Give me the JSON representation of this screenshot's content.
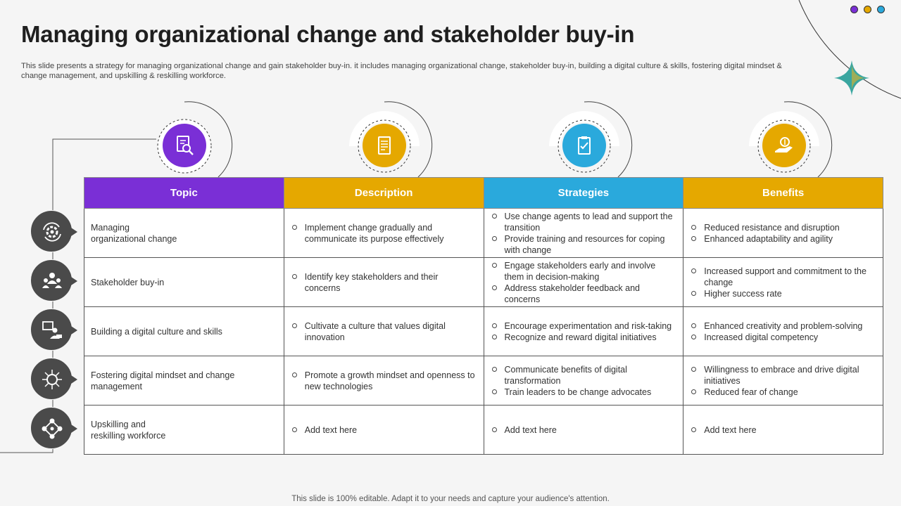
{
  "slide": {
    "title": "Managing organizational change and stakeholder buy-in",
    "subtitle": "This slide presents a strategy for managing organizational change and gain stakeholder buy-in. it includes managing organizational change, stakeholder buy-in, building a digital culture & skills, fostering digital mindset & change management, and upskilling & reskilling workforce.",
    "footer": "This slide is 100% editable. Adapt it to your needs and capture your audience's attention."
  },
  "colors": {
    "purple": "#7a2fd6",
    "yellow": "#e5a800",
    "blue": "#2aa9dc",
    "dark_gray": "#4a4a4a"
  },
  "header_icons": [
    "document-search-icon",
    "document-icon",
    "clipboard-icon",
    "money-hand-icon"
  ],
  "row_icons": [
    "gear-arrows-icon",
    "team-icon",
    "digital-learning-icon",
    "brain-circuit-icon",
    "network-icon"
  ],
  "table": {
    "headers": [
      "Topic",
      "Description",
      "Strategies",
      "Benefits"
    ],
    "rows": [
      {
        "topic": "Managing\norganizational change",
        "description": [
          "Implement change gradually and communicate its purpose effectively"
        ],
        "strategies": [
          "Use change agents to lead and support the transition",
          "Provide training and resources for coping with change"
        ],
        "benefits": [
          "Reduced resistance and disruption",
          "Enhanced adaptability and agility"
        ]
      },
      {
        "topic": "Stakeholder buy-in",
        "description": [
          "Identify key stakeholders and their concerns"
        ],
        "strategies": [
          "Engage stakeholders early and involve them in decision-making",
          "Address stakeholder feedback and concerns"
        ],
        "benefits": [
          "Increased support and commitment to the change",
          "Higher success rate"
        ]
      },
      {
        "topic": "Building a digital culture and skills",
        "description": [
          "Cultivate a culture that values digital innovation"
        ],
        "strategies": [
          "Encourage experimentation and risk-taking",
          "Recognize and reward digital initiatives"
        ],
        "benefits": [
          "Enhanced creativity and problem-solving",
          "Increased digital competency"
        ]
      },
      {
        "topic": "Fostering digital mindset and change management",
        "description": [
          "Promote a growth mindset and openness to\nnew technologies"
        ],
        "strategies": [
          "Communicate benefits of digital transformation",
          "Train leaders to be change advocates"
        ],
        "benefits": [
          "Willingness to embrace and drive digital initiatives",
          "Reduced fear of change"
        ]
      },
      {
        "topic": "Upskilling and\nreskilling workforce",
        "description": [
          "Add text here"
        ],
        "strategies": [
          "Add text here"
        ],
        "benefits": [
          "Add text here"
        ]
      }
    ]
  }
}
